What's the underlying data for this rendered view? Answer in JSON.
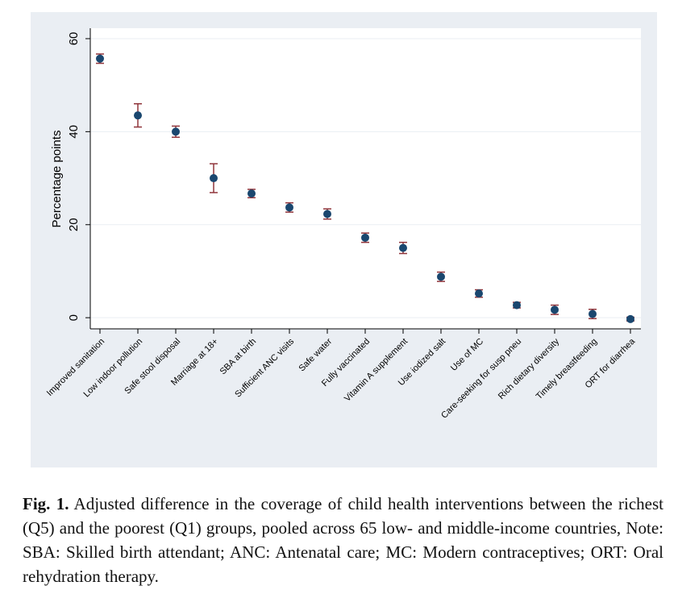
{
  "chart_data": {
    "type": "errorpoint",
    "ylabel": "Percentage points",
    "categories": [
      "Improved sanitation",
      "Low indoor pollution",
      "Safe stool disposal",
      "Marriage at 18+",
      "SBA at birth",
      "Sufficient ANC visits",
      "Safe water",
      "Fully vaccinated",
      "Vitamin A supplement",
      "Use iodized salt",
      "Use of MC",
      "Care-seeking for susp pneu",
      "Rich dietary diversity",
      "Timely breastfeeding",
      "ORT for diarrhea"
    ],
    "values": [
      55.7,
      43.5,
      40.0,
      30.0,
      26.7,
      23.7,
      22.3,
      17.2,
      15.0,
      8.8,
      5.2,
      2.7,
      1.7,
      0.8,
      -0.3
    ],
    "errors": [
      1.0,
      2.5,
      1.2,
      3.1,
      0.9,
      1.0,
      1.1,
      1.0,
      1.2,
      1.0,
      0.8,
      0.6,
      1.0,
      1.0,
      0.4
    ],
    "color": "#1a476f",
    "error_color": "#90353b",
    "ylim": [
      -2.4,
      61.9
    ],
    "yticks": [
      0,
      20,
      40,
      60
    ],
    "grid": true
  },
  "caption": {
    "label": "Fig. 1.",
    "text": "Adjusted difference in the coverage of child health interventions between the richest (Q5) and the poorest (Q1) groups, pooled across 65 low- and middle-income countries, Note: SBA: Skilled birth attendant; ANC: Antenatal care; MC: Modern contraceptives; ORT: Oral rehydration therapy."
  }
}
